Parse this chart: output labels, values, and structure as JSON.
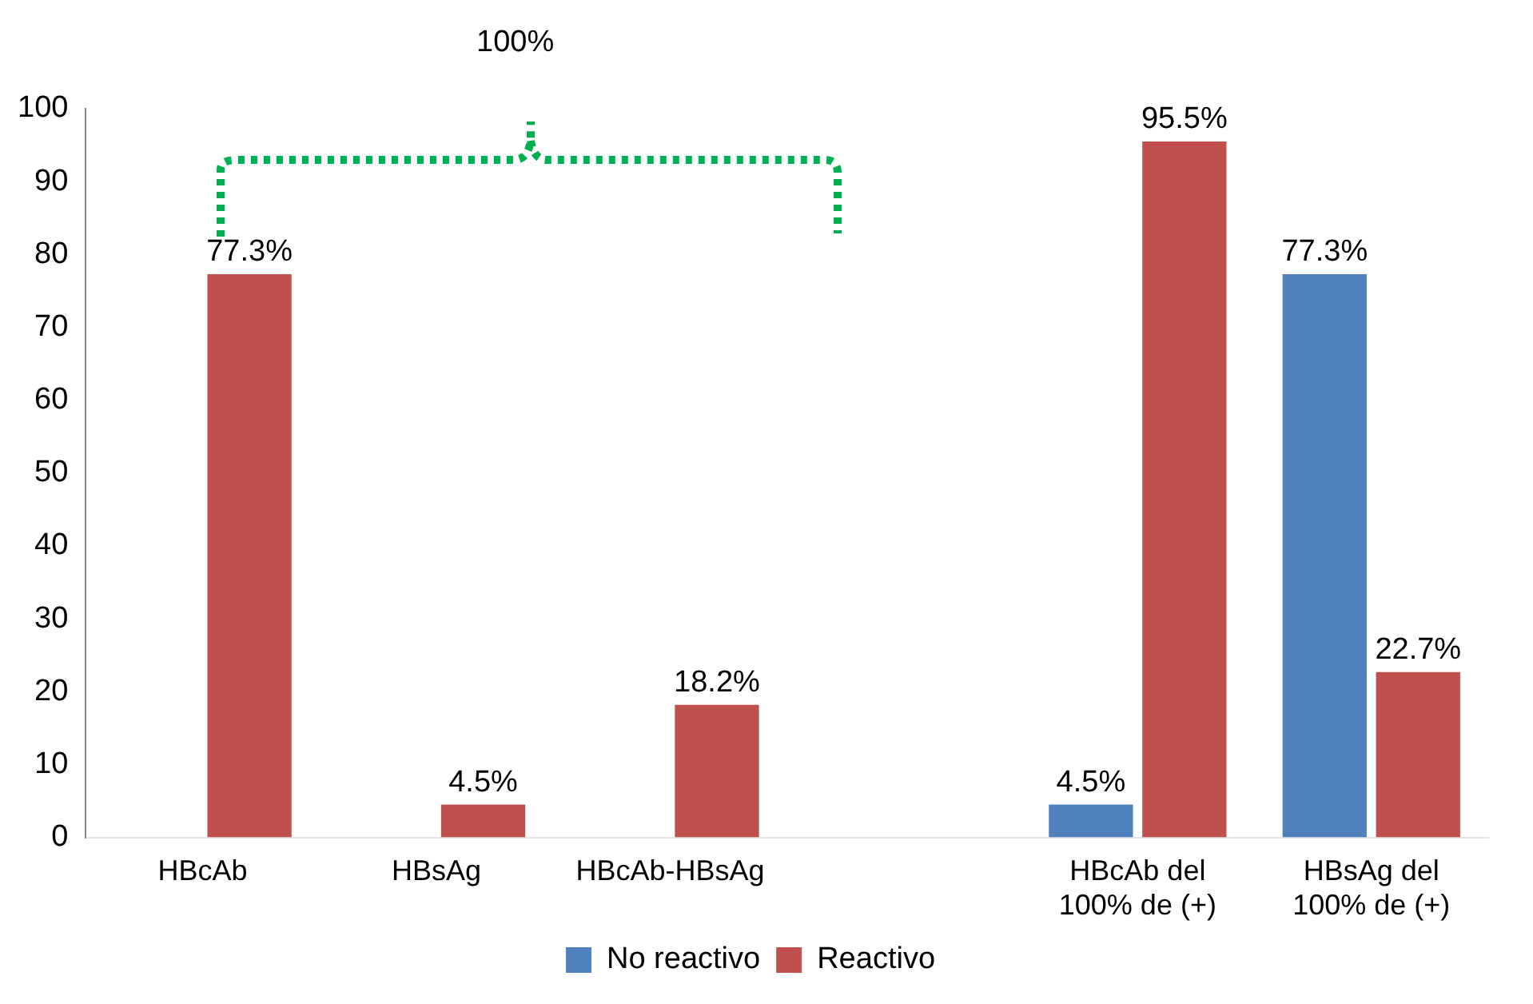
{
  "chart_data": {
    "type": "bar",
    "categories": [
      "HBcAb",
      "HBsAg",
      "HBcAb-HBsAg",
      null,
      "HBcAb del 100% de (+)",
      "HBsAg del 100% de (+)"
    ],
    "series": [
      {
        "name": "No reactivo",
        "color": "#4f81bd",
        "values": [
          null,
          null,
          null,
          null,
          4.5,
          77.3
        ],
        "value_labels": [
          null,
          null,
          null,
          null,
          "4.5%",
          "77.3%"
        ]
      },
      {
        "name": "Reactivo",
        "color": "#c0504d",
        "values": [
          77.3,
          4.5,
          18.2,
          null,
          95.5,
          22.7
        ],
        "value_labels": [
          "77.3%",
          "4.5%",
          "18.2%",
          null,
          "95.5%",
          "22.7%"
        ]
      }
    ],
    "ylim": [
      0,
      100
    ],
    "yticks": [
      0,
      10,
      20,
      30,
      40,
      50,
      60,
      70,
      80,
      90,
      100
    ],
    "grid": false,
    "legend": "bottom",
    "annotations": [
      "100%"
    ]
  }
}
